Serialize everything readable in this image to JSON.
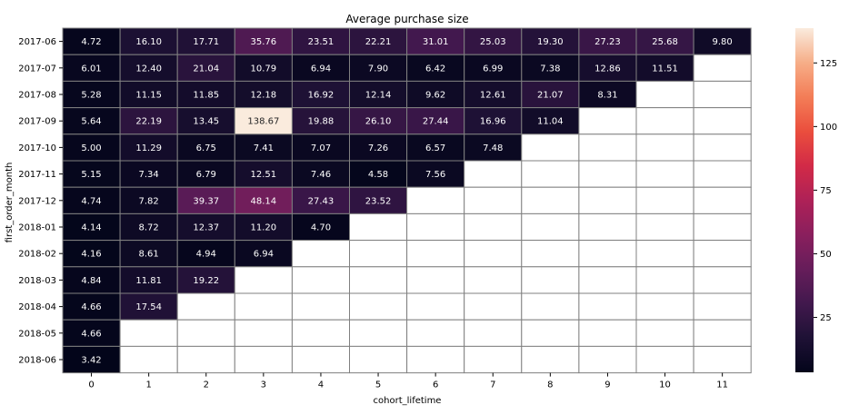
{
  "chart_data": {
    "type": "heatmap",
    "title": "Average purchase size",
    "xlabel": "cohort_lifetime",
    "ylabel": "first_order_month",
    "x_categories": [
      "0",
      "1",
      "2",
      "3",
      "4",
      "5",
      "6",
      "7",
      "8",
      "9",
      "10",
      "11"
    ],
    "y_categories": [
      "2017-06",
      "2017-07",
      "2017-08",
      "2017-09",
      "2017-10",
      "2017-11",
      "2017-12",
      "2018-01",
      "2018-02",
      "2018-03",
      "2018-04",
      "2018-05",
      "2018-06"
    ],
    "values": [
      [
        4.72,
        16.1,
        17.71,
        35.76,
        23.51,
        22.21,
        31.01,
        25.03,
        19.3,
        27.23,
        25.68,
        9.8
      ],
      [
        6.01,
        12.4,
        21.04,
        10.79,
        6.94,
        7.9,
        6.42,
        6.99,
        7.38,
        12.86,
        11.51,
        null
      ],
      [
        5.28,
        11.15,
        11.85,
        12.18,
        16.92,
        12.14,
        9.62,
        12.61,
        21.07,
        8.31,
        null,
        null
      ],
      [
        5.64,
        22.19,
        13.45,
        138.67,
        19.88,
        26.1,
        27.44,
        16.96,
        11.04,
        null,
        null,
        null
      ],
      [
        5.0,
        11.29,
        6.75,
        7.41,
        7.07,
        7.26,
        6.57,
        7.48,
        null,
        null,
        null,
        null
      ],
      [
        5.15,
        7.34,
        6.79,
        12.51,
        7.46,
        4.58,
        7.56,
        null,
        null,
        null,
        null,
        null
      ],
      [
        4.74,
        7.82,
        39.37,
        48.14,
        27.43,
        23.52,
        null,
        null,
        null,
        null,
        null,
        null
      ],
      [
        4.14,
        8.72,
        12.37,
        11.2,
        4.7,
        null,
        null,
        null,
        null,
        null,
        null,
        null
      ],
      [
        4.16,
        8.61,
        4.94,
        6.94,
        null,
        null,
        null,
        null,
        null,
        null,
        null,
        null
      ],
      [
        4.84,
        11.81,
        19.22,
        null,
        null,
        null,
        null,
        null,
        null,
        null,
        null,
        null
      ],
      [
        4.66,
        17.54,
        null,
        null,
        null,
        null,
        null,
        null,
        null,
        null,
        null,
        null
      ],
      [
        4.66,
        null,
        null,
        null,
        null,
        null,
        null,
        null,
        null,
        null,
        null,
        null
      ],
      [
        3.42,
        null,
        null,
        null,
        null,
        null,
        null,
        null,
        null,
        null,
        null,
        null
      ]
    ],
    "colorbar": {
      "range": [
        3.42,
        138.67
      ],
      "ticks": [
        25,
        50,
        75,
        100,
        125
      ]
    },
    "colormap": "rocket",
    "grid": true
  }
}
